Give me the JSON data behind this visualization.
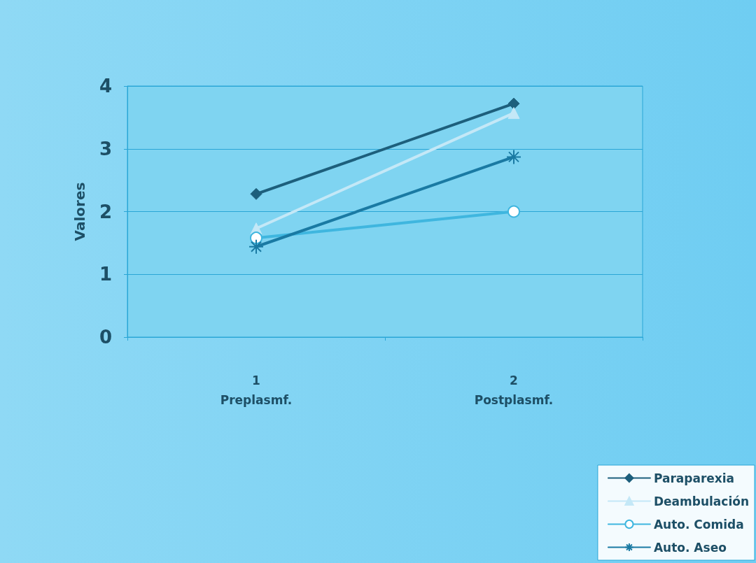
{
  "chart_data": {
    "type": "line",
    "ylabel": "Valores",
    "categories": [
      "1\nPreplasmf.",
      "2\nPostplasmf."
    ],
    "series": [
      {
        "name": "Paraparexia",
        "color": "#1d5f7c",
        "marker": "diamond",
        "values": [
          2.28,
          3.72
        ]
      },
      {
        "name": "Deambulación",
        "color": "#c4e8f7",
        "marker": "triangle",
        "values": [
          1.73,
          3.57
        ]
      },
      {
        "name": "Auto. Comida",
        "color": "#3fb6df",
        "marker": "circle",
        "values": [
          1.58,
          2.0
        ]
      },
      {
        "name": "Auto. Aseo",
        "color": "#1a7aa3",
        "marker": "cross",
        "values": [
          1.44,
          2.87
        ]
      }
    ],
    "ylim": [
      0,
      4
    ],
    "yticks": [
      0,
      1,
      2,
      3,
      4
    ],
    "grid": "y",
    "legend": "bottom right",
    "line_style": "solid"
  }
}
